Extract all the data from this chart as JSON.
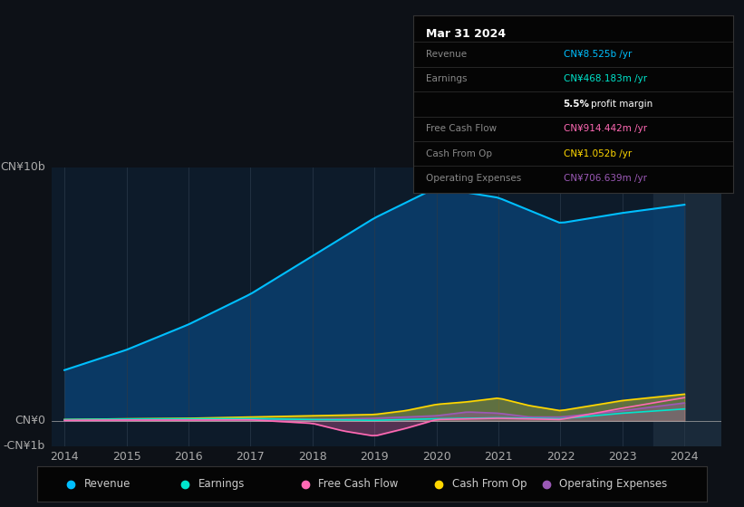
{
  "background_color": "#0d1117",
  "plot_bg_color": "#0d1b2a",
  "ylim_min": -1000000000.0,
  "ylim_max": 10000000000.0,
  "xlabel_years": [
    "2014",
    "2015",
    "2016",
    "2017",
    "2018",
    "2019",
    "2020",
    "2021",
    "2022",
    "2023",
    "2024"
  ],
  "legend_items": [
    {
      "label": "Revenue",
      "color": "#00bfff"
    },
    {
      "label": "Earnings",
      "color": "#00e5cc"
    },
    {
      "label": "Free Cash Flow",
      "color": "#ff69b4"
    },
    {
      "label": "Cash From Op",
      "color": "#ffd700"
    },
    {
      "label": "Operating Expenses",
      "color": "#9b59b6"
    }
  ],
  "tooltip": {
    "date": "Mar 31 2024",
    "revenue": {
      "value": "CN¥8.525b",
      "color": "#00bfff"
    },
    "earnings": {
      "value": "CN¥468.183m",
      "color": "#00e5cc"
    },
    "profit_margin": "5.5%",
    "free_cash_flow": {
      "value": "CN¥914.442m",
      "color": "#ff69b4"
    },
    "cash_from_op": {
      "value": "CN¥1.052b",
      "color": "#ffd700"
    },
    "operating_expenses": {
      "value": "CN¥706.639m",
      "color": "#9b59b6"
    }
  },
  "revenue_color": "#00bfff",
  "revenue_fill": "#0a3d6b",
  "earnings_color": "#00e5cc",
  "fcf_color": "#ff69b4",
  "cashfromop_color": "#ffd700",
  "opex_color": "#9b59b6",
  "highlight_color": "#1a2a3a",
  "divider_color": "#333333",
  "label_color": "#888888",
  "tick_color": "#aaaaaa",
  "legend_text_color": "#cccccc"
}
